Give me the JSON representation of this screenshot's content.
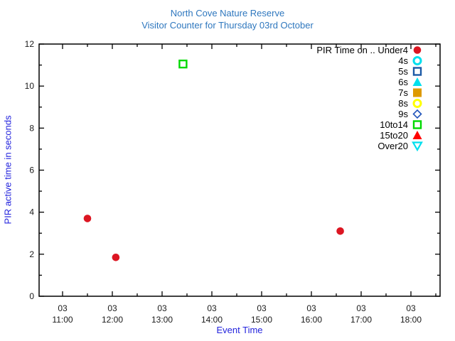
{
  "chart_data": {
    "type": "scatter",
    "title": "North Cove Nature Reserve",
    "subtitle": "Visitor Counter for Thursday 03rd October",
    "xlabel": "Event Time",
    "ylabel": "PIR active time in seconds",
    "ylim": [
      0,
      12
    ],
    "y_major_ticks": [
      0,
      2,
      4,
      6,
      8,
      10,
      12
    ],
    "y_minor_ticks": [
      1,
      3,
      5,
      7,
      9,
      11
    ],
    "x_ticks": [
      {
        "day": "03",
        "time": "11:00",
        "hour": 11
      },
      {
        "day": "03",
        "time": "12:00",
        "hour": 12
      },
      {
        "day": "03",
        "time": "13:00",
        "hour": 13
      },
      {
        "day": "03",
        "time": "14:00",
        "hour": 14
      },
      {
        "day": "03",
        "time": "15:00",
        "hour": 15
      },
      {
        "day": "03",
        "time": "16:00",
        "hour": 16
      },
      {
        "day": "03",
        "time": "17:00",
        "hour": 17
      },
      {
        "day": "03",
        "time": "18:00",
        "hour": 18
      }
    ],
    "x_minor_hours": [
      11.5,
      12.5,
      13.5,
      14.5,
      15.5,
      16.5,
      17.5,
      18.5
    ],
    "xlim_hours": [
      10.53,
      18.59
    ],
    "grid": false,
    "legend": {
      "title": "PIR Time on ..",
      "position": "top-right"
    },
    "series": [
      {
        "name": "Under4",
        "marker": "circle-filled",
        "color": "#dc1622",
        "points": [
          [
            11.5,
            3.7
          ],
          [
            12.07,
            1.85
          ],
          [
            16.58,
            3.1
          ]
        ]
      },
      {
        "name": "4s",
        "marker": "circle-open",
        "color": "#00e0ee",
        "points": []
      },
      {
        "name": "5s",
        "marker": "square-open",
        "color": "#1c5aa6",
        "points": []
      },
      {
        "name": "6s",
        "marker": "triangle-up-filled",
        "color": "#00e0ee",
        "points": []
      },
      {
        "name": "7s",
        "marker": "square-filled",
        "color": "#dd9900",
        "points": []
      },
      {
        "name": "8s",
        "marker": "circle-open",
        "color": "#ffff00",
        "points": []
      },
      {
        "name": "9s",
        "marker": "diamond-open",
        "color": "#2255bb",
        "points": []
      },
      {
        "name": "10to14",
        "marker": "square-open",
        "color": "#00d900",
        "points": [
          [
            13.42,
            11.05
          ]
        ]
      },
      {
        "name": "15to20",
        "marker": "triangle-up-filled",
        "color": "#ff0000",
        "points": []
      },
      {
        "name": "Over20",
        "marker": "triangle-down-open",
        "color": "#00e0ee",
        "points": []
      }
    ]
  },
  "colors": {
    "title_text": "#2e77be",
    "axis_label_text": "#2323dd",
    "tick_text": "#1a1a1a",
    "frame": "#000000"
  }
}
